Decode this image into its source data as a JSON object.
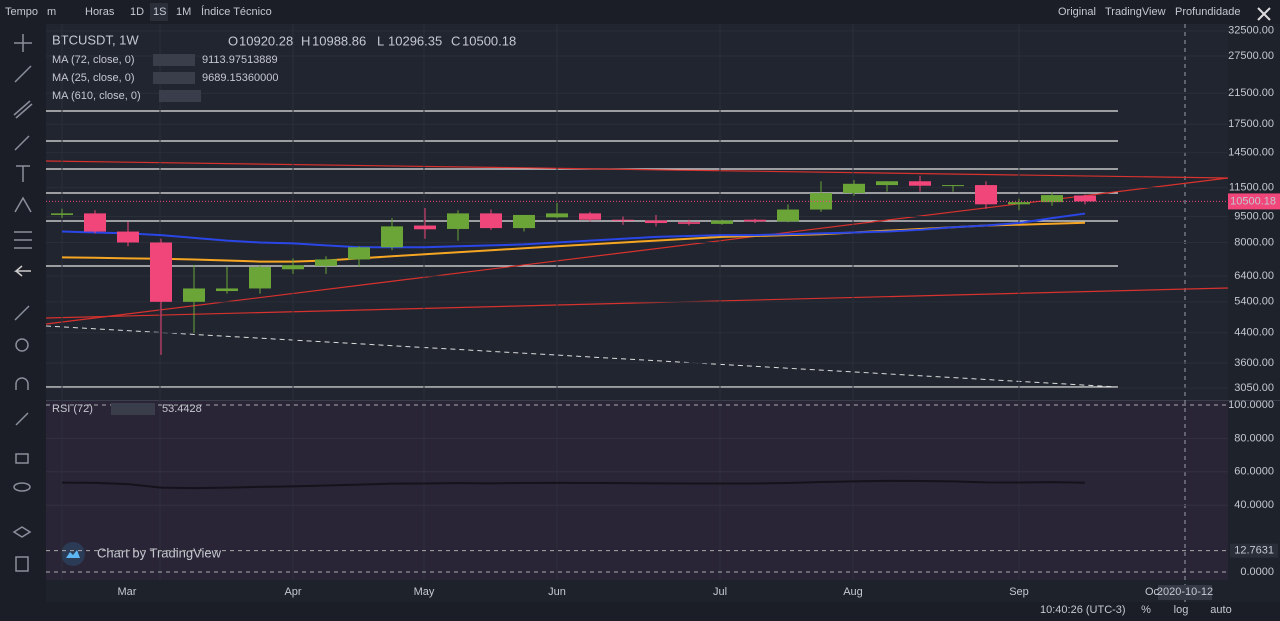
{
  "toolbar": {
    "left": [
      "Tempo",
      "m",
      "Horas",
      "1D",
      "1S",
      "1M",
      "Índice Técnico"
    ],
    "right": [
      "Original",
      "TradingView",
      "Profundidade"
    ]
  },
  "chart": {
    "symbol": "BTCUSDT, 1W",
    "ohlc_letters": [
      "O",
      "H",
      "L",
      "C"
    ],
    "ylim": [
      2800,
      34000
    ],
    "log": true,
    "yticks": [
      {
        "value": 32500,
        "label": "32500.00"
      },
      {
        "value": 27500,
        "label": "27500.00"
      },
      {
        "value": 21500,
        "label": "21500.00"
      },
      {
        "value": 17500,
        "label": "17500.00"
      },
      {
        "value": 14500,
        "label": "14500.00"
      },
      {
        "value": 11500,
        "label": "11500.00"
      },
      {
        "value": 9500,
        "label": "9500.00"
      },
      {
        "value": 8000,
        "label": "8000.00"
      },
      {
        "value": 6400,
        "label": "6400.00"
      },
      {
        "value": 5400,
        "label": "5400.00"
      },
      {
        "value": 4400,
        "label": "4400.00"
      },
      {
        "value": 3600,
        "label": "3600.00"
      },
      {
        "value": 3050,
        "label": "3050.00"
      }
    ],
    "candles": [
      {
        "open": 9600,
        "high": 10000,
        "low": 9400,
        "close": 9700
      },
      {
        "open": 9700,
        "high": 9900,
        "low": 8500,
        "close": 8600
      },
      {
        "open": 8600,
        "high": 9200,
        "low": 7800,
        "close": 8000
      },
      {
        "open": 8000,
        "high": 8200,
        "low": 3800,
        "close": 5400
      },
      {
        "open": 5400,
        "high": 6900,
        "low": 4400,
        "close": 5900
      },
      {
        "open": 5800,
        "high": 6800,
        "low": 5700,
        "close": 5900
      },
      {
        "open": 5900,
        "high": 6900,
        "low": 5700,
        "close": 6800
      },
      {
        "open": 6700,
        "high": 7200,
        "low": 6500,
        "close": 6880
      },
      {
        "open": 6850,
        "high": 7300,
        "low": 6500,
        "close": 7150
      },
      {
        "open": 7150,
        "high": 7800,
        "low": 6800,
        "close": 7750
      },
      {
        "open": 7750,
        "high": 9400,
        "low": 7600,
        "close": 8900
      },
      {
        "open": 8950,
        "high": 10050,
        "low": 8200,
        "close": 8730
      },
      {
        "open": 8750,
        "high": 9900,
        "low": 8100,
        "close": 9700
      },
      {
        "open": 9700,
        "high": 9950,
        "low": 8700,
        "close": 8800
      },
      {
        "open": 8800,
        "high": 9600,
        "low": 8600,
        "close": 9600
      },
      {
        "open": 9450,
        "high": 10400,
        "low": 9400,
        "close": 9700
      },
      {
        "open": 9700,
        "high": 9800,
        "low": 9200,
        "close": 9300
      },
      {
        "open": 9300,
        "high": 9500,
        "low": 9000,
        "close": 9250
      },
      {
        "open": 9250,
        "high": 9600,
        "low": 8900,
        "close": 9100
      },
      {
        "open": 9150,
        "high": 9300,
        "low": 8950,
        "close": 9050
      },
      {
        "open": 9050,
        "high": 9300,
        "low": 9000,
        "close": 9250
      },
      {
        "open": 9300,
        "high": 9350,
        "low": 9100,
        "close": 9200
      },
      {
        "open": 9200,
        "high": 10300,
        "low": 9150,
        "close": 9950
      },
      {
        "open": 9950,
        "high": 12000,
        "low": 9800,
        "close": 11100
      },
      {
        "open": 11100,
        "high": 12100,
        "low": 10900,
        "close": 11800
      },
      {
        "open": 11700,
        "high": 12000,
        "low": 11200,
        "close": 12000
      },
      {
        "open": 12000,
        "high": 12450,
        "low": 11200,
        "close": 11650
      },
      {
        "open": 11650,
        "high": 11700,
        "low": 11200,
        "close": 11700
      },
      {
        "open": 11700,
        "high": 12000,
        "low": 10000,
        "close": 10300
      },
      {
        "open": 10300,
        "high": 10700,
        "low": 9900,
        "close": 10450
      },
      {
        "open": 10450,
        "high": 11150,
        "low": 10200,
        "close": 10950
      },
      {
        "open": 10920.28,
        "high": 10988.86,
        "low": 10296.35,
        "close": 10500.18
      }
    ],
    "ma": [
      {
        "name": "MA (72, close, 0)",
        "color": "#f6a623",
        "values": [
          7250,
          7230,
          7200,
          7180,
          7150,
          7100,
          7050,
          7050,
          7100,
          7200,
          7300,
          7400,
          7500,
          7600,
          7700,
          7800,
          7900,
          8000,
          8100,
          8200,
          8300,
          8350,
          8400,
          8450,
          8550,
          8650,
          8750,
          8850,
          8950,
          9000,
          9060,
          9113.97513889
        ]
      },
      {
        "name": "MA (25, close, 0)",
        "color": "#2a46e6",
        "values": [
          8600,
          8550,
          8500,
          8400,
          8250,
          8100,
          8000,
          7950,
          7850,
          7750,
          7750,
          7750,
          7800,
          7850,
          7900,
          8000,
          8100,
          8200,
          8300,
          8350,
          8400,
          8400,
          8450,
          8500,
          8550,
          8600,
          8700,
          8850,
          8950,
          9100,
          9400,
          9689.1536
        ],
        "value_label": "9689.15360000"
      },
      {
        "name": "MA (610, close, 0)"
      }
    ],
    "rsi": {
      "name": "RSI (72)",
      "ylim": [
        0,
        100
      ],
      "yticks": [
        {
          "value": 100,
          "label": "100.0000"
        },
        {
          "value": 80,
          "label": "80.0000"
        },
        {
          "value": 60,
          "label": "60.0000"
        },
        {
          "value": 40,
          "label": "40.0000"
        },
        {
          "value": 0,
          "label": "0.0000"
        }
      ],
      "marker": 12.7631,
      "values": [
        53.5,
        53.4,
        52.6,
        50.5,
        50.2,
        50.5,
        51.0,
        51.3,
        51.8,
        52.3,
        52.9,
        53.0,
        53.2,
        53.1,
        53.3,
        53.4,
        53.3,
        53.2,
        53.1,
        53.0,
        53.0,
        53.0,
        53.3,
        53.9,
        54.3,
        54.6,
        54.5,
        54.3,
        53.7,
        53.6,
        53.8,
        53.4428
      ]
    },
    "months": [
      "Mar",
      "Apr",
      "May",
      "Jun",
      "Jul",
      "Aug",
      "Sep",
      "Oc"
    ],
    "cursor_date": "2020-10-12",
    "watermark": "Chart by TradingView"
  },
  "status": {
    "time": "10:40:26 (UTC-3)",
    "buttons": [
      "%",
      "log",
      "auto"
    ]
  }
}
